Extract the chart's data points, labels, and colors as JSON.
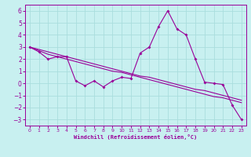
{
  "title": "",
  "xlabel": "Windchill (Refroidissement éolien,°C)",
  "background_color": "#c8f0f0",
  "line_color": "#990099",
  "grid_color": "#aadddd",
  "x_data": [
    0,
    1,
    2,
    3,
    4,
    5,
    6,
    7,
    8,
    9,
    10,
    11,
    12,
    13,
    14,
    15,
    16,
    17,
    18,
    19,
    20,
    21,
    22,
    23
  ],
  "y_main": [
    3.0,
    2.6,
    2.0,
    2.2,
    2.2,
    0.2,
    -0.2,
    0.2,
    -0.3,
    0.2,
    0.5,
    0.4,
    2.5,
    3.0,
    4.7,
    6.0,
    4.5,
    4.0,
    2.0,
    0.1,
    0.0,
    -0.1,
    -1.8,
    -3.0
  ],
  "y_line1": [
    3.0,
    2.7,
    2.4,
    2.2,
    2.0,
    1.8,
    1.6,
    1.4,
    1.2,
    1.0,
    0.9,
    0.7,
    0.5,
    0.3,
    0.1,
    -0.1,
    -0.3,
    -0.5,
    -0.7,
    -0.9,
    -1.1,
    -1.2,
    -1.4,
    -1.6
  ],
  "y_line2": [
    3.0,
    2.8,
    2.6,
    2.4,
    2.2,
    2.0,
    1.8,
    1.6,
    1.4,
    1.2,
    1.0,
    0.8,
    0.6,
    0.5,
    0.3,
    0.1,
    -0.1,
    -0.3,
    -0.5,
    -0.6,
    -0.8,
    -1.0,
    -1.2,
    -1.4
  ],
  "ylim": [
    -3.5,
    6.5
  ],
  "xlim": [
    -0.5,
    23.5
  ],
  "yticks": [
    -3,
    -2,
    -1,
    0,
    1,
    2,
    3,
    4,
    5,
    6
  ],
  "xticks": [
    0,
    1,
    2,
    3,
    4,
    5,
    6,
    7,
    8,
    9,
    10,
    11,
    12,
    13,
    14,
    15,
    16,
    17,
    18,
    19,
    20,
    21,
    22,
    23
  ],
  "figsize": [
    3.2,
    2.0
  ],
  "dpi": 100
}
